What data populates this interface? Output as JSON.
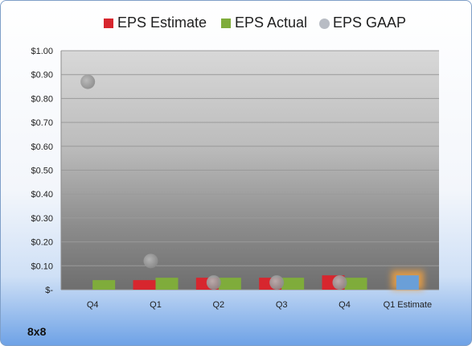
{
  "chart_data": {
    "type": "bar",
    "categories": [
      "Q4",
      "Q1",
      "Q2",
      "Q3",
      "Q4",
      "Q1 Estimate"
    ],
    "series": [
      {
        "name": "EPS Estimate",
        "type": "bar",
        "color": "#d7262e",
        "values": [
          null,
          0.04,
          0.05,
          0.05,
          0.06,
          null
        ]
      },
      {
        "name": "EPS Actual",
        "type": "bar",
        "color": "#7fac3b",
        "values": [
          0.04,
          0.05,
          0.05,
          0.05,
          0.05,
          null
        ]
      },
      {
        "name": "EPS GAAP",
        "type": "scatter",
        "color": "#9a9a9a",
        "values": [
          0.87,
          0.12,
          0.03,
          0.03,
          0.03,
          null
        ]
      }
    ],
    "highlight": {
      "category": "Q1 Estimate",
      "value": 0.06,
      "color": "#6a9fd8",
      "glow": "#f0a040"
    },
    "yticks": [
      "$1.00",
      "$0.90",
      "$0.80",
      "$0.70",
      "$0.60",
      "$0.50",
      "$0.40",
      "$0.30",
      "$0.20",
      "$0.10",
      "$-"
    ],
    "ylim": [
      0,
      1.0
    ],
    "legend_position": "top",
    "grid": true
  },
  "company": "8x8"
}
